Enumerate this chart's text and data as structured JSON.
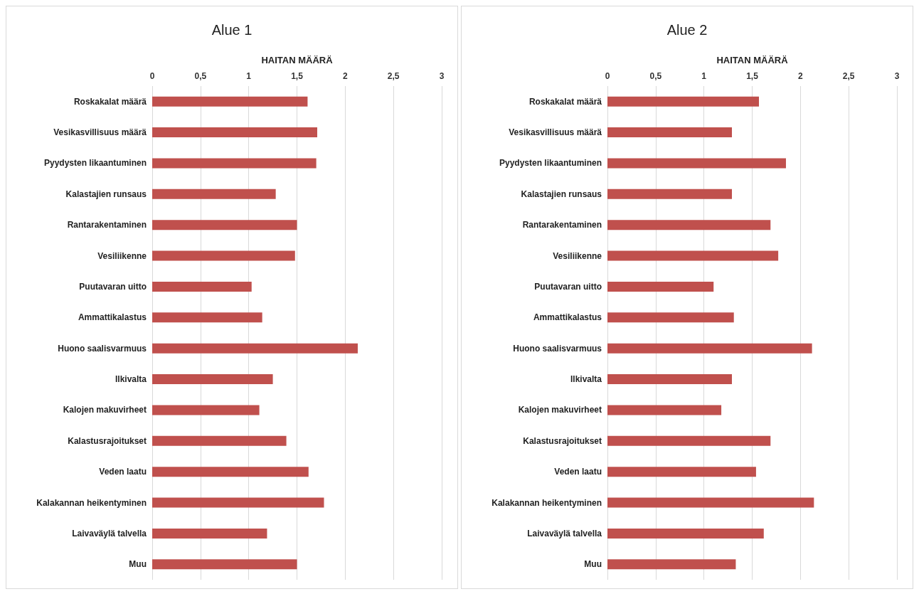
{
  "chart_data": [
    {
      "type": "bar",
      "title": "Alue 1",
      "xlabel": "HAITAN MÄÄRÄ",
      "orientation": "horizontal",
      "grid": "x",
      "categories": [
        "Roskakalat määrä",
        "Vesikasvillisuus määrä",
        "Pyydysten likaantuminen",
        "Kalastajien runsaus",
        "Rantarakentaminen",
        "Vesiliikenne",
        "Puutavaran uitto",
        "Ammattikalastus",
        "Huono saalisvarmuus",
        "Ilkivalta",
        "Kalojen makuvirheet",
        "Kalastusrajoitukset",
        "Veden laatu",
        "Kalakannan heikentyminen",
        "Laivaväylä talvella",
        "Muu"
      ],
      "series": [
        {
          "color": "#c0504d",
          "values": [
            1.61,
            1.71,
            1.7,
            1.28,
            1.5,
            1.48,
            1.03,
            1.14,
            2.13,
            1.25,
            1.11,
            1.39,
            1.62,
            1.78,
            1.19,
            1.5
          ]
        }
      ],
      "xlim": [
        0,
        3
      ],
      "xticks": [
        0,
        {
          "value": 0.5,
          "label": "0,5"
        },
        1,
        {
          "value": 1.5,
          "label": "1,5"
        },
        2,
        {
          "value": 2.5,
          "label": "2,5"
        },
        3
      ]
    },
    {
      "type": "bar",
      "title": "Alue 2",
      "xlabel": "HAITAN MÄÄRÄ",
      "orientation": "horizontal",
      "grid": "x",
      "categories": [
        "Roskakalat määrä",
        "Vesikasvillisuus määrä",
        "Pyydysten likaantuminen",
        "Kalastajien runsaus",
        "Rantarakentaminen",
        "Vesiliikenne",
        "Puutavaran uitto",
        "Ammattikalastus",
        "Huono saalisvarmuus",
        "Ilkivalta",
        "Kalojen makuvirheet",
        "Kalastusrajoitukset",
        "Veden laatu",
        "Kalakannan heikentyminen",
        "Laivaväylä talvella",
        "Muu"
      ],
      "series": [
        {
          "color": "#c0504d",
          "values": [
            1.57,
            1.29,
            1.85,
            1.29,
            1.69,
            1.77,
            1.1,
            1.31,
            2.12,
            1.29,
            1.18,
            1.69,
            1.54,
            2.14,
            1.62,
            1.33
          ]
        }
      ],
      "xlim": [
        0,
        3
      ],
      "xticks": [
        0,
        {
          "value": 0.5,
          "label": "0,5"
        },
        1,
        {
          "value": 1.5,
          "label": "1,5"
        },
        2,
        {
          "value": 2.5,
          "label": "2,5"
        },
        3
      ]
    }
  ]
}
